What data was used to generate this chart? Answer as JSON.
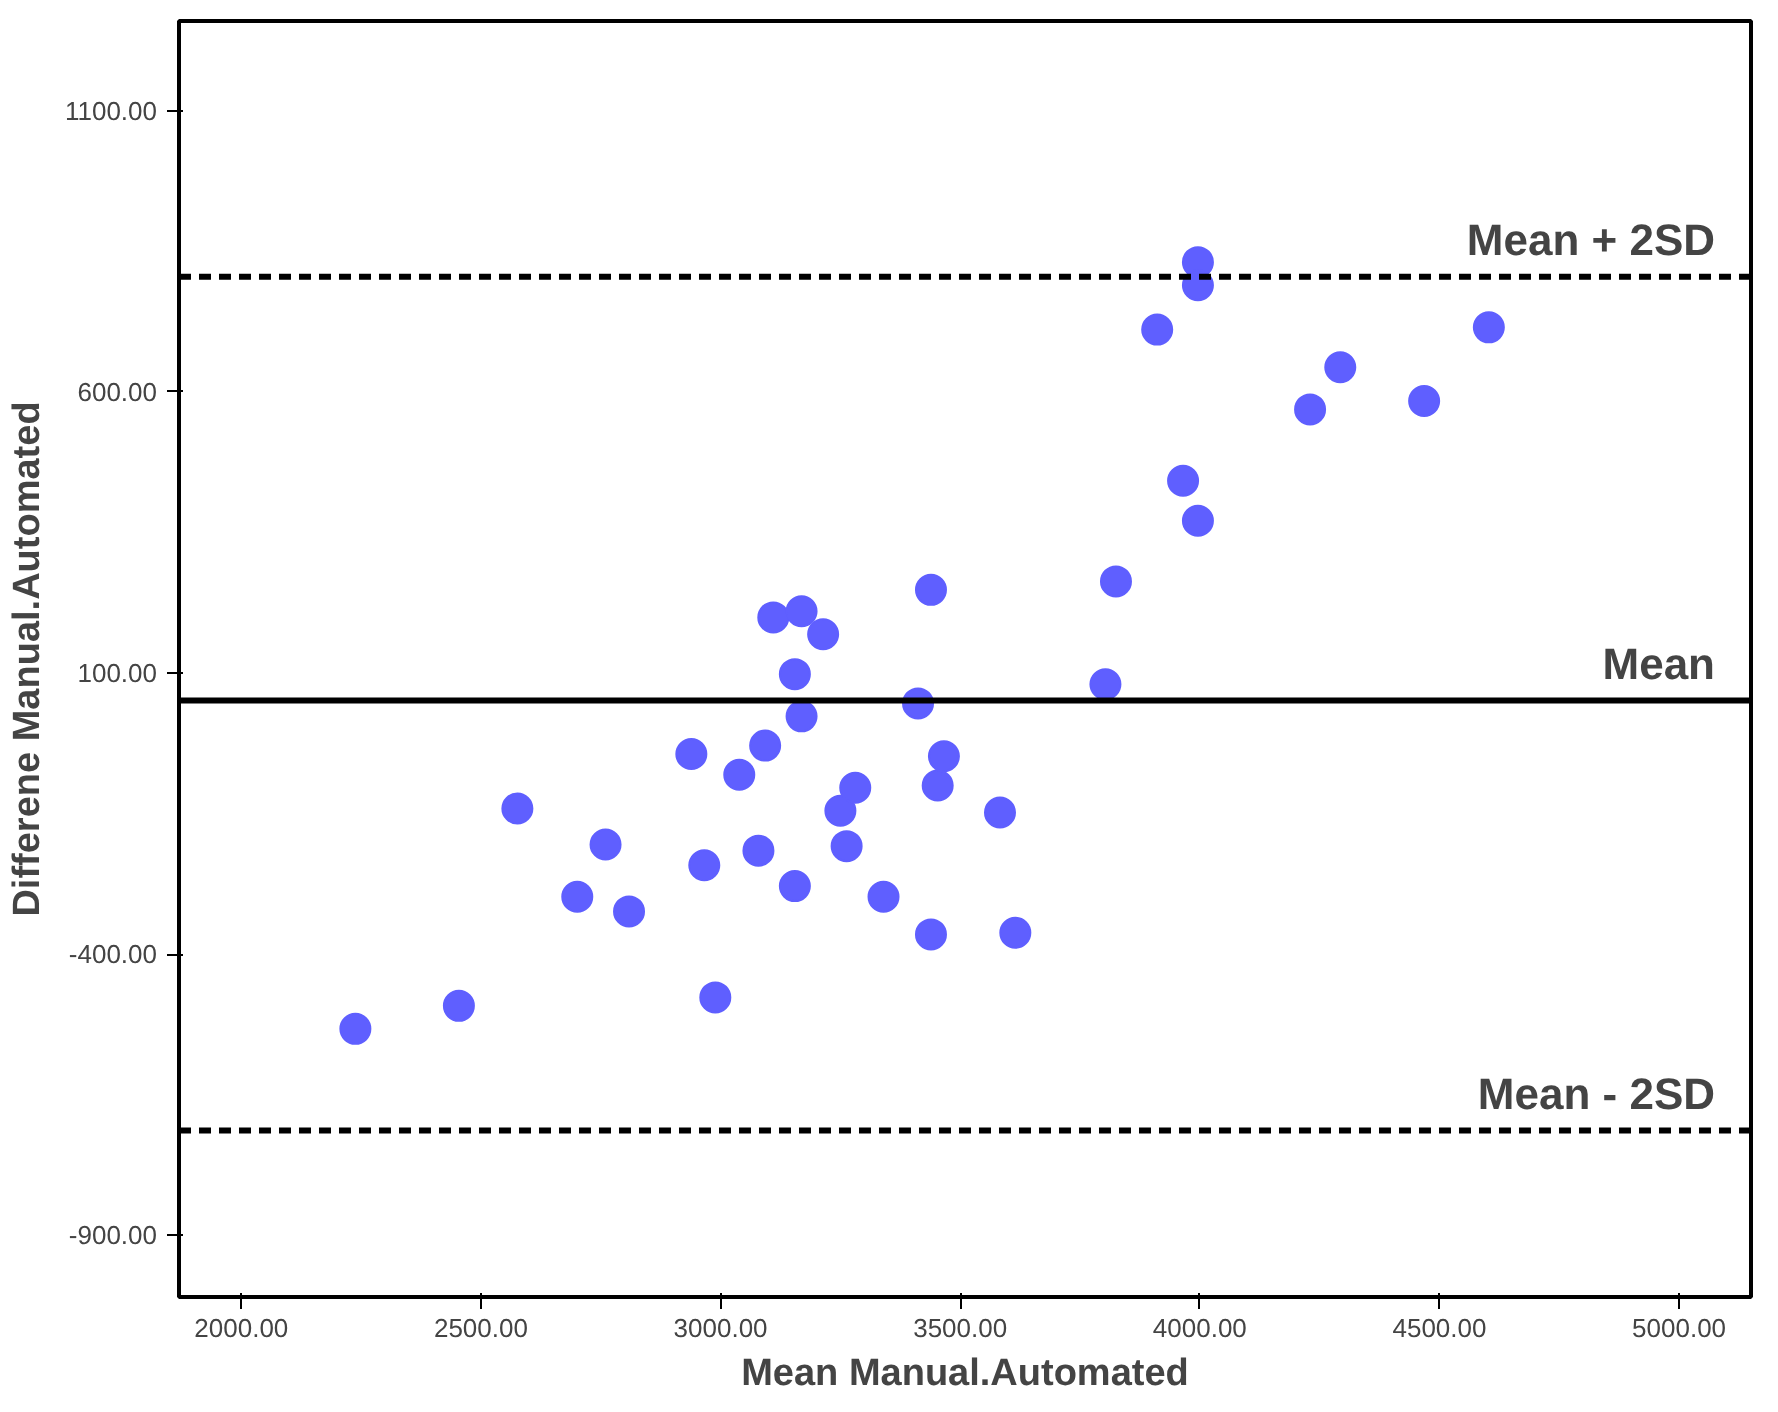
{
  "chart_data": {
    "type": "scatter",
    "xlabel": "Mean Manual.Automated",
    "ylabel": "Differene Manual.Automated",
    "x": [
      2238,
      2454,
      2576,
      2701,
      2760,
      2809,
      2939,
      2966,
      2989,
      3039,
      3079,
      3093,
      3110,
      3155,
      3155,
      3169,
      3169,
      3214,
      3250,
      3263,
      3281,
      3340,
      3412,
      3439,
      3439,
      3453,
      3466,
      3583,
      3615,
      3803,
      3825,
      3911,
      3965,
      3996,
      3996,
      3996,
      4230,
      4293,
      4468,
      4603
    ],
    "series": [
      {
        "color": "#5f5fff",
        "values": [
          -533,
          -492,
          -141,
          -298,
          -205,
          -324,
          -44,
          -242,
          -477,
          -81,
          -216,
          -29,
          199,
          -279,
          98,
          210,
          23,
          169,
          -145,
          -208,
          -104,
          -298,
          46,
          248,
          -365,
          -100,
          -48,
          -148,
          -362,
          80,
          263,
          711,
          442,
          371,
          831,
          790,
          569,
          644,
          584,
          715
        ]
      }
    ],
    "xlim": [
      1870,
      5150
    ],
    "ylim": [
      -1010,
      1260
    ],
    "xticks": [
      {
        "value": 2000,
        "label": "2000.00"
      },
      {
        "value": 2500,
        "label": "2500.00"
      },
      {
        "value": 3000,
        "label": "3000.00"
      },
      {
        "value": 3500,
        "label": "3500.00"
      },
      {
        "value": 4000,
        "label": "4000.00"
      },
      {
        "value": 4500,
        "label": "4500.00"
      },
      {
        "value": 5000,
        "label": "5000.00"
      }
    ],
    "yticks": [
      {
        "value": -900,
        "label": "-900.00"
      },
      {
        "value": -400,
        "label": "-400.00"
      },
      {
        "value": 100,
        "label": "100.00"
      },
      {
        "value": 600,
        "label": "600.00"
      },
      {
        "value": 1100,
        "label": "1100.00"
      }
    ],
    "ref_lines": [
      {
        "axis": "y",
        "value": 805,
        "label": "Mean + 2SD",
        "line_style": "dashed",
        "color": "#000000"
      },
      {
        "axis": "y",
        "value": 51,
        "label": "Mean",
        "line_style": "solid",
        "color": "#000000"
      },
      {
        "axis": "y",
        "value": -714,
        "label": "Mean - 2SD",
        "line_style": "dashed",
        "color": "#000000"
      }
    ],
    "marker": "circle",
    "grid": false
  }
}
